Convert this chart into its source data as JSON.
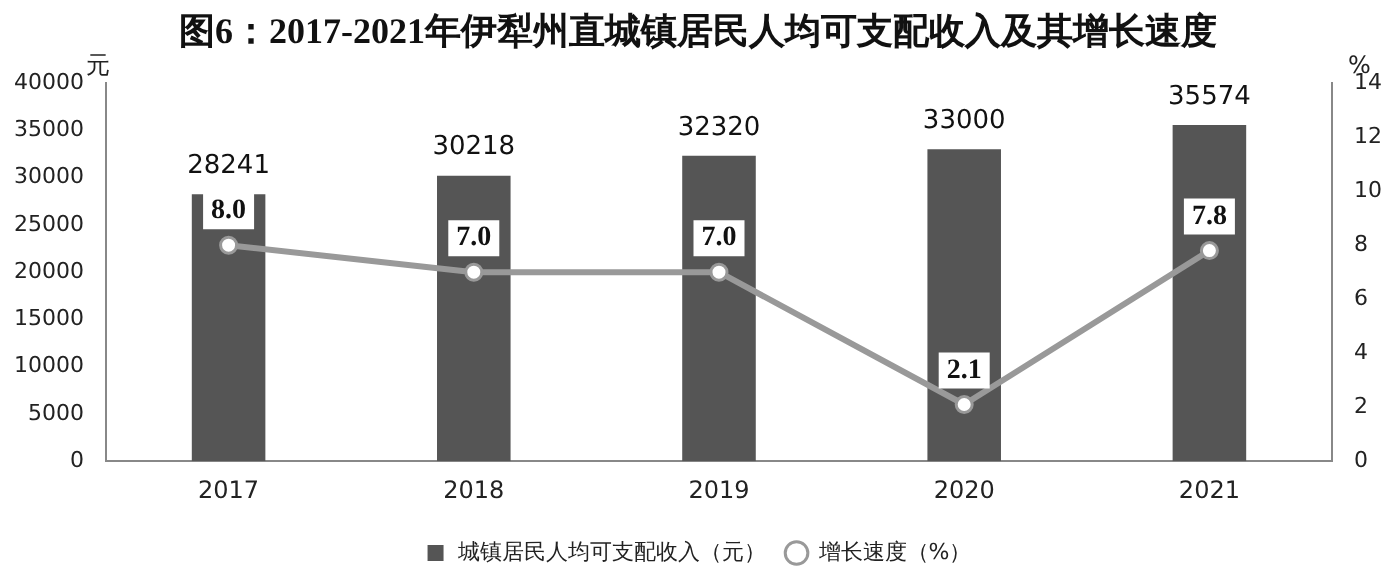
{
  "chart_data": {
    "type": "bar",
    "title": "图6：2017-2021年伊犁州直城镇居民人均可支配收入及其增长速度",
    "categories": [
      "2017",
      "2018",
      "2019",
      "2020",
      "2021"
    ],
    "series": [
      {
        "name": "城镇居民人均可支配收入（元）",
        "color": "#555555",
        "values": [
          28241,
          30218,
          32320,
          33000,
          35574
        ],
        "value_labels": [
          "28241",
          "30218",
          "32320",
          "33000",
          "35574"
        ]
      },
      {
        "name": "增长速度（%）",
        "type": "line",
        "axis": "y2",
        "color": "#999999",
        "values": [
          8.0,
          7.0,
          7.0,
          2.1,
          7.8
        ],
        "value_labels": [
          "8.0",
          "7.0",
          "7.0",
          "2.1",
          "7.8"
        ]
      }
    ],
    "ylabel": "元",
    "y2label": "%",
    "ylim": [
      0,
      40000
    ],
    "yticks": [
      0,
      5000,
      10000,
      15000,
      20000,
      25000,
      30000,
      35000,
      40000
    ],
    "y2lim": [
      0,
      14
    ],
    "y2ticks": [
      0,
      2,
      4,
      6,
      8,
      10,
      12,
      14
    ],
    "grid": false,
    "legend": "bottom",
    "marker": "circle",
    "line_style": "solid"
  }
}
